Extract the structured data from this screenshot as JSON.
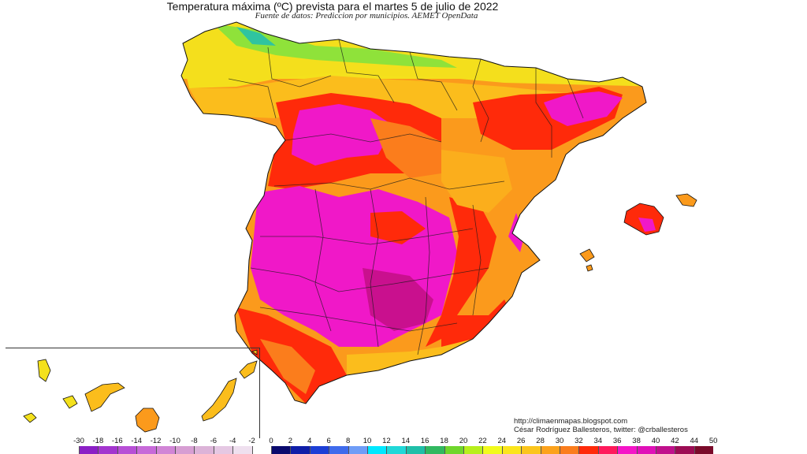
{
  "title": "Temperatura máxima (ºC) prevista para el martes 5 de julio de 2022",
  "subtitle": "Fuente de datos: Prediccion por municipios. AEMET OpenData",
  "credits": {
    "url": "http://climaenmapas.blogspot.com",
    "author": "César Rodríguez Ballesteros, twitter: @crballesteros"
  },
  "legend": {
    "labels": [
      "-30",
      "-18",
      "-16",
      "-14",
      "-12",
      "-10",
      "-8",
      "-6",
      "-4",
      "-2",
      "0",
      "2",
      "4",
      "6",
      "8",
      "10",
      "12",
      "14",
      "16",
      "18",
      "20",
      "22",
      "24",
      "26",
      "28",
      "30",
      "32",
      "34",
      "36",
      "38",
      "40",
      "42",
      "44",
      "50"
    ],
    "colors": [
      "#8b1fc6",
      "#a335cf",
      "#b74fd6",
      "#c76ad9",
      "#d185d6",
      "#d79ed3",
      "#dcb3d8",
      "#e5c8e3",
      "#efe0ef",
      "#ffffff",
      "#0a0a6e",
      "#0f1ea8",
      "#1c3fd6",
      "#3f6bec",
      "#6f9df7",
      "#00e8ff",
      "#20d8d8",
      "#1fbfa8",
      "#31b860",
      "#6fd62c",
      "#b7ef1c",
      "#f1fb1c",
      "#fbe51c",
      "#fbc51c",
      "#fca21c",
      "#fb7d1c",
      "#ff2a0a",
      "#ff1a5c",
      "#f515c8",
      "#e010b8",
      "#c0108c",
      "#9c0c54",
      "#7a0a2a"
    ]
  }
}
